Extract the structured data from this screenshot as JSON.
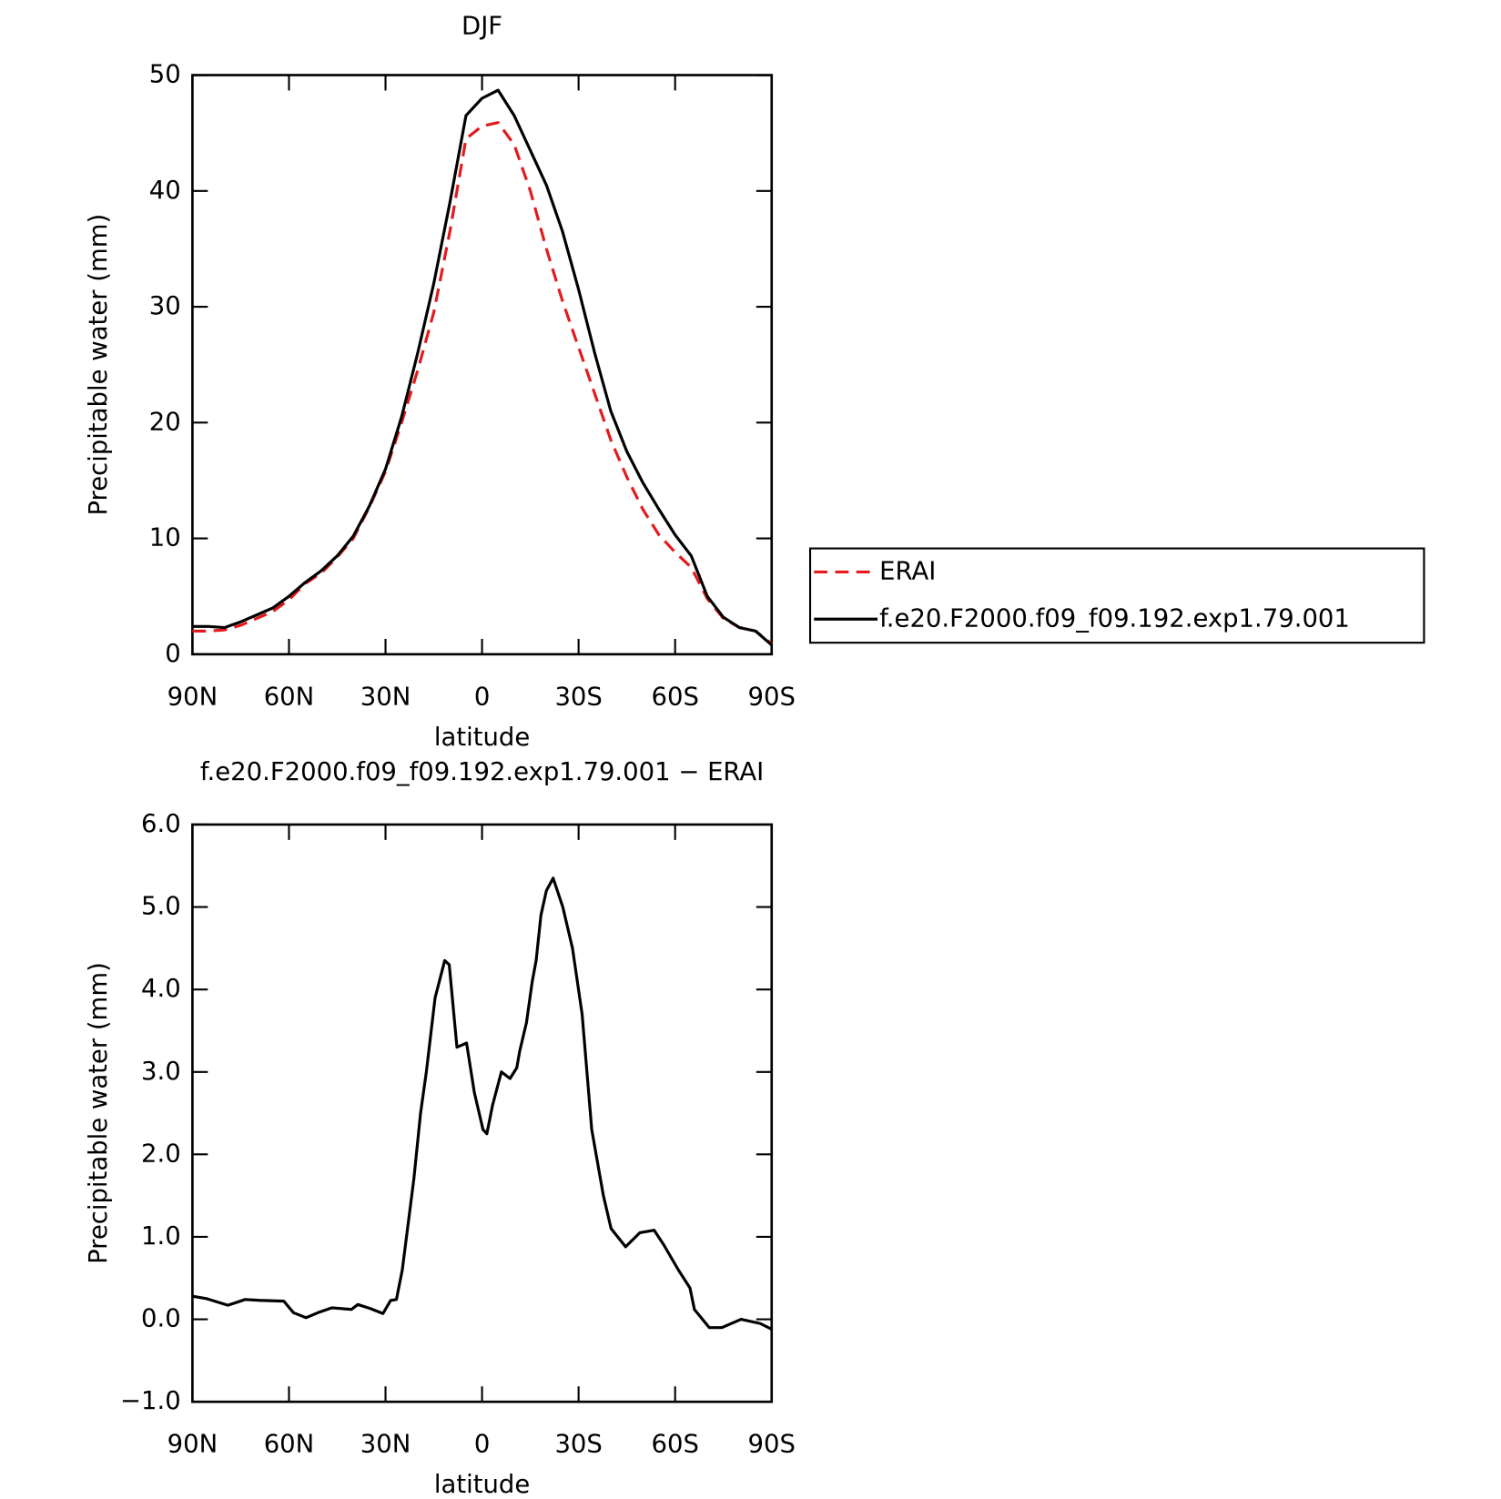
{
  "chart_data": [
    {
      "type": "line",
      "title": "DJF",
      "xlabel": "latitude",
      "ylabel": "Precipitable water (mm)",
      "x": [
        90,
        85,
        80,
        75,
        70,
        65,
        60,
        55,
        50,
        45,
        40,
        35,
        30,
        25,
        20,
        15,
        10,
        5,
        0,
        -5,
        -10,
        -15,
        -20,
        -25,
        -30,
        -35,
        -40,
        -45,
        -50,
        -55,
        -60,
        -65,
        -70,
        -75,
        -80,
        -85,
        -90
      ],
      "xlim": [
        90,
        -90
      ],
      "xticks": [
        {
          "value": 90,
          "label": "90N"
        },
        {
          "value": 60,
          "label": "60N"
        },
        {
          "value": 30,
          "label": "30N"
        },
        0,
        {
          "value": -30,
          "label": "30S"
        },
        {
          "value": -60,
          "label": "60S"
        },
        {
          "value": -90,
          "label": "90S"
        }
      ],
      "ylim": [
        0,
        50
      ],
      "yticks": [
        0,
        10,
        20,
        30,
        40,
        50
      ],
      "legend": "right",
      "series": [
        {
          "name": "ERAI",
          "color": "#e41a1c",
          "dash": true,
          "values": [
            2.0,
            2.0,
            2.1,
            2.5,
            3.1,
            3.7,
            4.7,
            6.1,
            7.0,
            8.4,
            10.0,
            12.7,
            15.8,
            20.0,
            24.5,
            29.5,
            36.5,
            44.5,
            45.6,
            45.9,
            44.0,
            40.0,
            35.0,
            30.5,
            26.5,
            22.5,
            18.5,
            15.3,
            12.5,
            10.3,
            8.8,
            7.5,
            4.8,
            3.1,
            2.3,
            2.0,
            0.9
          ]
        },
        {
          "name": "f.e20.F2000.f09_f09.192.exp1.79.001",
          "color": "#000000",
          "dash": false,
          "values": [
            2.4,
            2.4,
            2.3,
            2.8,
            3.4,
            4.0,
            5.0,
            6.2,
            7.2,
            8.5,
            10.2,
            12.8,
            16.0,
            20.5,
            26.0,
            32.0,
            39.0,
            46.5,
            48.0,
            48.7,
            46.5,
            43.5,
            40.5,
            36.5,
            31.5,
            26.0,
            21.0,
            17.5,
            14.8,
            12.5,
            10.3,
            8.5,
            5.0,
            3.2,
            2.3,
            2.0,
            0.8
          ]
        }
      ]
    },
    {
      "type": "line",
      "title": "f.e20.F2000.f09_f09.192.exp1.79.001 − ERAI",
      "xlabel": "latitude",
      "ylabel": "Precipitable water (mm)",
      "x": [
        90,
        85.5,
        79,
        73.6,
        69,
        61.6,
        58.6,
        54.7,
        51,
        46.6,
        40.6,
        38.6,
        34.7,
        30.8,
        28.4,
        26.6,
        24.8,
        21.2,
        19.1,
        17.3,
        14.6,
        11.6,
        10.2,
        7.8,
        4.8,
        2.4,
        -0.3,
        -1.5,
        -3.3,
        -6,
        -8.7,
        -10.8,
        -11.7,
        -13.8,
        -15.6,
        -16.8,
        -18.3,
        -20,
        -22.1,
        -25.1,
        -28.1,
        -31.1,
        -34.1,
        -37.7,
        -40.1,
        -44.6,
        -49,
        -53.5,
        -56.5,
        -61,
        -64.6,
        -66,
        -70.6,
        -74.5,
        -80.5,
        -86.4,
        -90
      ],
      "values": [
        0.28,
        0.25,
        0.17,
        0.24,
        0.23,
        0.22,
        0.08,
        0.02,
        0.08,
        0.14,
        0.12,
        0.18,
        0.13,
        0.07,
        0.23,
        0.24,
        0.6,
        1.7,
        2.5,
        3.0,
        3.9,
        4.35,
        4.3,
        3.3,
        3.35,
        2.75,
        2.3,
        2.25,
        2.6,
        3.0,
        2.92,
        3.05,
        3.25,
        3.6,
        4.1,
        4.35,
        4.9,
        5.2,
        5.35,
        5.0,
        4.5,
        3.7,
        2.3,
        1.5,
        1.1,
        0.88,
        1.05,
        1.08,
        0.9,
        0.6,
        0.38,
        0.12,
        -0.1,
        -0.1,
        0.0,
        -0.05,
        -0.12
      ],
      "color": "#000000",
      "xlim": [
        90,
        -90
      ],
      "xticks": [
        {
          "value": 90,
          "label": "90N"
        },
        {
          "value": 60,
          "label": "60N"
        },
        {
          "value": 30,
          "label": "30N"
        },
        0,
        {
          "value": -30,
          "label": "30S"
        },
        {
          "value": -60,
          "label": "60S"
        },
        {
          "value": -90,
          "label": "90S"
        }
      ],
      "ylim": [
        -1,
        6
      ],
      "yticks": [
        {
          "value": -1,
          "label": "−1.0"
        },
        {
          "value": 0,
          "label": "0.0"
        },
        {
          "value": 1,
          "label": "1.0"
        },
        {
          "value": 2,
          "label": "2.0"
        },
        {
          "value": 3,
          "label": "3.0"
        },
        {
          "value": 4,
          "label": "4.0"
        },
        {
          "value": 5,
          "label": "5.0"
        },
        {
          "value": 6,
          "label": "6.0"
        }
      ]
    }
  ]
}
